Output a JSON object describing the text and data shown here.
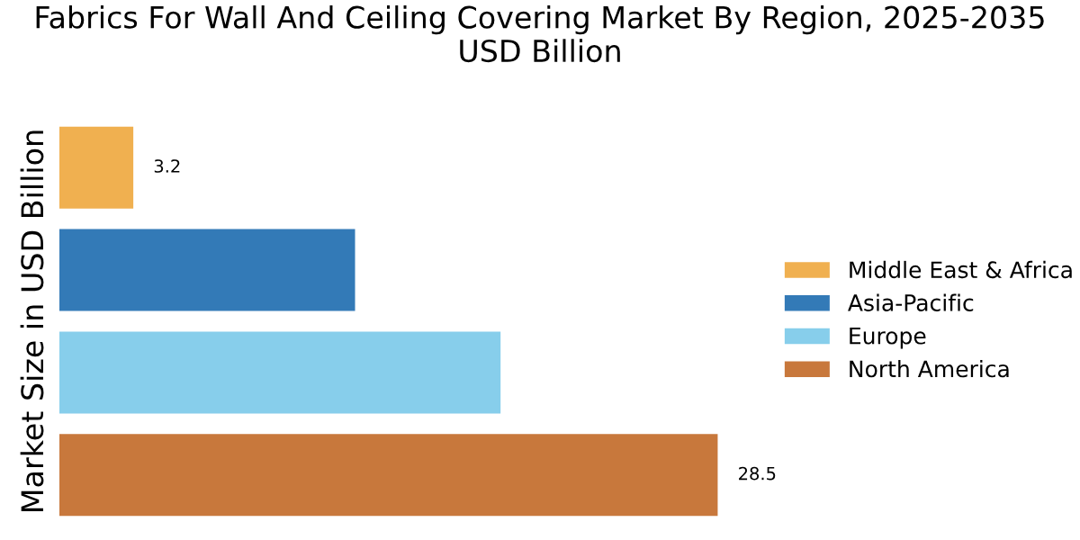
{
  "chart_data": {
    "type": "bar",
    "orientation": "horizontal",
    "stacked": true,
    "title": "Fabrics For Wall And Ceiling Covering Market By Region, 2025-2035 USD Billion",
    "ylabel": "Market Size in USD Billion",
    "categories": [
      null,
      null,
      null,
      null
    ],
    "series": [
      {
        "name": "Middle East & Africa",
        "color": "#f0b050",
        "values": [
          3.2,
          null,
          null,
          null
        ],
        "value_labels": [
          "3.2",
          null,
          null,
          null
        ]
      },
      {
        "name": "Asia-Pacific",
        "color": "#337ab7",
        "values": [
          null,
          12.8,
          null,
          null
        ]
      },
      {
        "name": "Europe",
        "color": "#87ceeb",
        "values": [
          null,
          null,
          19.1,
          null
        ]
      },
      {
        "name": "North America",
        "color": "#c8783c",
        "values": [
          null,
          null,
          null,
          28.5
        ],
        "value_labels": [
          null,
          null,
          null,
          "28.5"
        ]
      }
    ],
    "legend": "right",
    "grid": false,
    "tick_labels": false
  }
}
